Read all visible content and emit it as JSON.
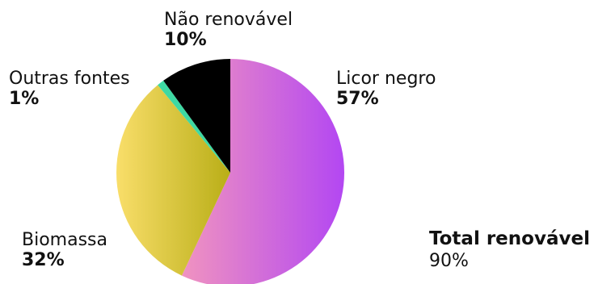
{
  "chart_data": {
    "type": "pie",
    "slices": [
      {
        "label": "Licor negro",
        "value": 57,
        "value_text": "57%",
        "color_start": "#f093c0",
        "color_end": "#b347f2"
      },
      {
        "label": "Biomassa",
        "value": 32,
        "value_text": "32%",
        "color_start": "#f9de6a",
        "color_end": "#b9ae17"
      },
      {
        "label": "Outras fontes",
        "value": 1,
        "value_text": "1%",
        "color_start": "#3ed9a3",
        "color_end": "#3ed9a3"
      },
      {
        "label": "Não renovável",
        "value": 10,
        "value_text": "10%",
        "color_start": "#000000",
        "color_end": "#000000"
      }
    ],
    "start_angle_deg": 0,
    "direction": "clockwise",
    "annotation": {
      "title": "Total renovável",
      "value": "90%"
    }
  }
}
